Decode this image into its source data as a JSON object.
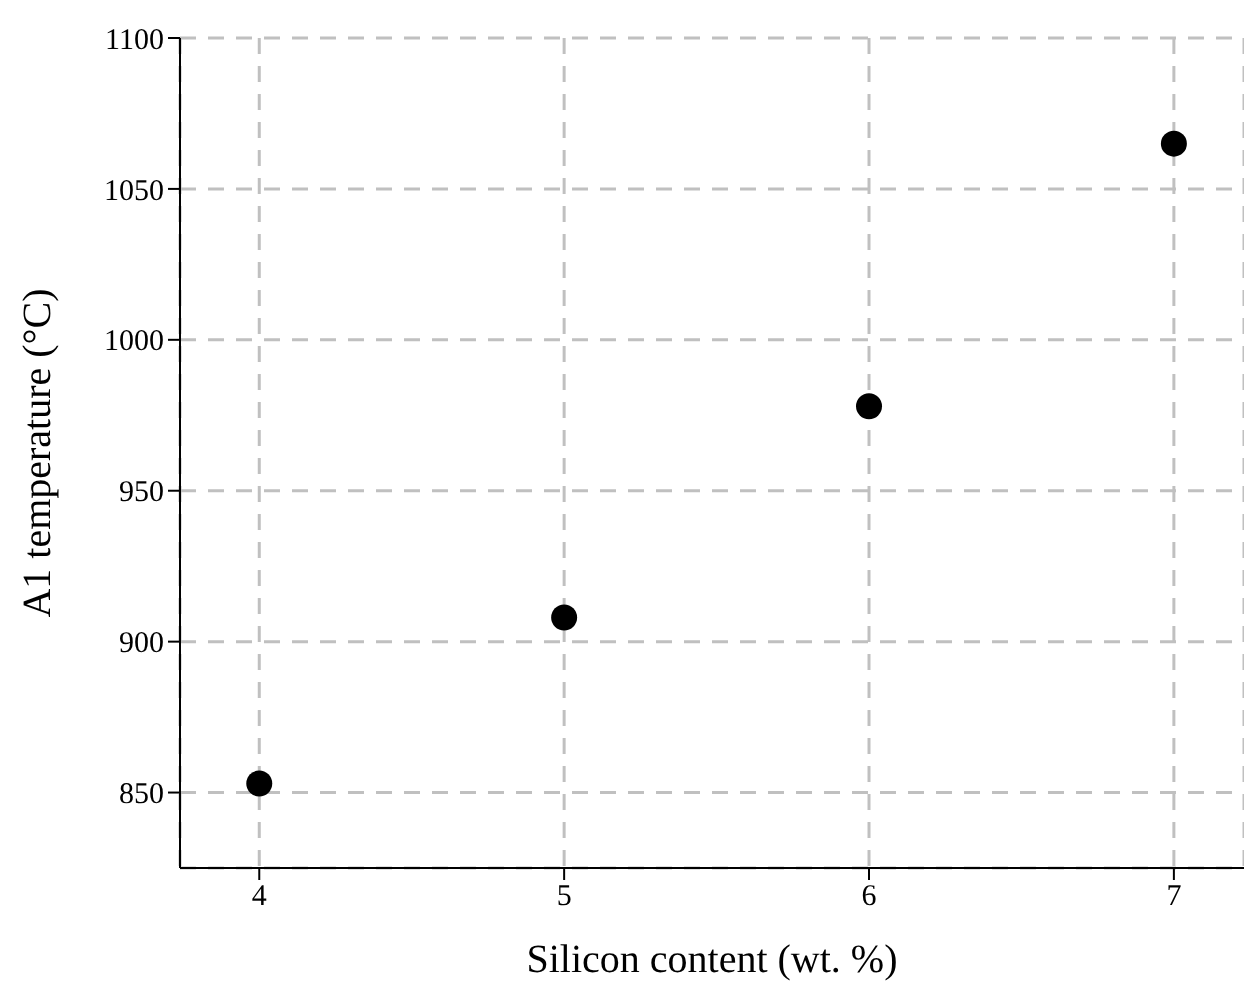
{
  "chart_data": {
    "type": "scatter",
    "xlabel": "Silicon content (wt. %)",
    "ylabel": "A1 temperature (°C)",
    "x": [
      4,
      5,
      6,
      7
    ],
    "series": [
      {
        "color": "#000000",
        "values": [
          853,
          908,
          978,
          1065
        ]
      }
    ],
    "xlim": [
      3.74,
      7.23
    ],
    "xticks": [
      4,
      5,
      6,
      7
    ],
    "ylim": [
      825,
      1100
    ],
    "yticks": [
      850,
      900,
      950,
      1000,
      1050,
      1100
    ],
    "grid": true,
    "marker": "circle",
    "legend": false
  }
}
